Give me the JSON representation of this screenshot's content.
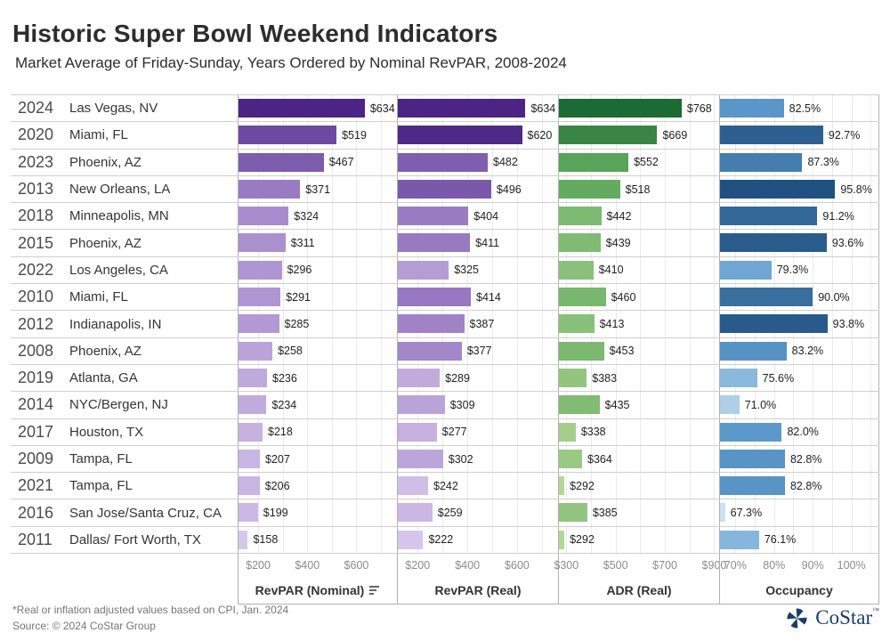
{
  "header": {
    "title": "Historic Super Bowl Weekend Indicators",
    "subtitle": "Market Average of Friday-Sunday, Years Ordered by Nominal RevPAR, 2008-2024"
  },
  "chart_data": {
    "type": "bar",
    "orientation": "horizontal",
    "title": "Historic Super Bowl Weekend Indicators",
    "subtitle": "Market Average of Friday-Sunday, Years Ordered by Nominal RevPAR, 2008-2024",
    "sort_note": "rows sorted descending by RevPAR (Nominal)",
    "rows": [
      {
        "year": "2024",
        "market": "Las Vegas, NV",
        "revpar_nominal": 634,
        "revpar_real": 634,
        "adr_real": 768,
        "occupancy": 82.5
      },
      {
        "year": "2020",
        "market": "Miami, FL",
        "revpar_nominal": 519,
        "revpar_real": 620,
        "adr_real": 669,
        "occupancy": 92.7
      },
      {
        "year": "2023",
        "market": "Phoenix, AZ",
        "revpar_nominal": 467,
        "revpar_real": 482,
        "adr_real": 552,
        "occupancy": 87.3
      },
      {
        "year": "2013",
        "market": "New Orleans, LA",
        "revpar_nominal": 371,
        "revpar_real": 496,
        "adr_real": 518,
        "occupancy": 95.8
      },
      {
        "year": "2018",
        "market": "Minneapolis, MN",
        "revpar_nominal": 324,
        "revpar_real": 404,
        "adr_real": 442,
        "occupancy": 91.2
      },
      {
        "year": "2015",
        "market": "Phoenix, AZ",
        "revpar_nominal": 311,
        "revpar_real": 411,
        "adr_real": 439,
        "occupancy": 93.6
      },
      {
        "year": "2022",
        "market": "Los Angeles, CA",
        "revpar_nominal": 296,
        "revpar_real": 325,
        "adr_real": 410,
        "occupancy": 79.3
      },
      {
        "year": "2010",
        "market": "Miami, FL",
        "revpar_nominal": 291,
        "revpar_real": 414,
        "adr_real": 460,
        "occupancy": 90.0
      },
      {
        "year": "2012",
        "market": "Indianapolis, IN",
        "revpar_nominal": 285,
        "revpar_real": 387,
        "adr_real": 413,
        "occupancy": 93.8
      },
      {
        "year": "2008",
        "market": "Phoenix, AZ",
        "revpar_nominal": 258,
        "revpar_real": 377,
        "adr_real": 453,
        "occupancy": 83.2
      },
      {
        "year": "2019",
        "market": "Atlanta, GA",
        "revpar_nominal": 236,
        "revpar_real": 289,
        "adr_real": 383,
        "occupancy": 75.6
      },
      {
        "year": "2014",
        "market": "NYC/Bergen, NJ",
        "revpar_nominal": 234,
        "revpar_real": 309,
        "adr_real": 435,
        "occupancy": 71.0
      },
      {
        "year": "2017",
        "market": "Houston, TX",
        "revpar_nominal": 218,
        "revpar_real": 277,
        "adr_real": 338,
        "occupancy": 82.0
      },
      {
        "year": "2009",
        "market": "Tampa, FL",
        "revpar_nominal": 207,
        "revpar_real": 302,
        "adr_real": 364,
        "occupancy": 82.8
      },
      {
        "year": "2021",
        "market": "Tampa, FL",
        "revpar_nominal": 206,
        "revpar_real": 242,
        "adr_real": 292,
        "occupancy": 82.8
      },
      {
        "year": "2016",
        "market": "San Jose/Santa Cruz, CA",
        "revpar_nominal": 199,
        "revpar_real": 259,
        "adr_real": 385,
        "occupancy": 67.3
      },
      {
        "year": "2011",
        "market": "Dallas/ Fort Worth, TX",
        "revpar_nominal": 158,
        "revpar_real": 222,
        "adr_real": 292,
        "occupancy": 76.1
      }
    ],
    "panels": [
      {
        "key": "revpar_nominal",
        "title": "RevPAR (Nominal)",
        "sorted_descending": true,
        "unit": "$",
        "axis_min": 120,
        "axis_max": 765,
        "ticks": [
          200,
          400,
          600
        ],
        "minor_step": 100,
        "domain": [
          158,
          634
        ],
        "palette": {
          "light": "#D7C6EC",
          "mid": "#9272BE",
          "dark": "#4A2584"
        }
      },
      {
        "key": "revpar_real",
        "title": "RevPAR (Real)",
        "sorted_descending": false,
        "unit": "$",
        "axis_min": 120,
        "axis_max": 765,
        "ticks": [
          200,
          400,
          600
        ],
        "minor_step": 100,
        "domain": [
          222,
          634
        ],
        "palette": {
          "light": "#D7C6EC",
          "mid": "#9272BE",
          "dark": "#4A2584"
        }
      },
      {
        "key": "adr_real",
        "title": "ADR (Real)",
        "sorted_descending": false,
        "unit": "$",
        "axis_min": 270,
        "axis_max": 920,
        "ticks": [
          300,
          500,
          700,
          900
        ],
        "minor_step": 100,
        "domain": [
          292,
          768
        ],
        "palette": {
          "light": "#B4D795",
          "mid": "#5FA95E",
          "dark": "#1C6B34"
        }
      },
      {
        "key": "occupancy",
        "title": "Occupancy",
        "sorted_descending": false,
        "unit": "%",
        "axis_min": 66,
        "axis_max": 107,
        "ticks": [
          70,
          80,
          90,
          100
        ],
        "minor_step": 5,
        "domain": [
          67.3,
          95.8
        ],
        "palette": {
          "light": "#C9E1F4",
          "mid": "#5E9BCD",
          "dark": "#1F5080"
        }
      }
    ],
    "legend_position": "none",
    "grid": true
  },
  "footer": {
    "note1": "*Real or inflation adjusted values based on CPI, Jan. 2024",
    "note2": "Source: © 2024 CoStar Group",
    "logo_text": "CoStar",
    "logo_tm": "™",
    "logo_color": "#1c3e66"
  }
}
